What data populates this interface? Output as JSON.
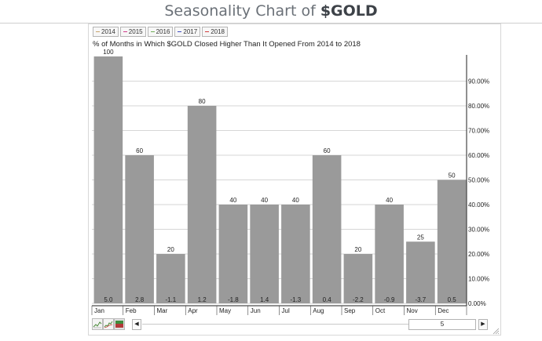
{
  "page": {
    "title_prefix": "Seasonality Chart of ",
    "title_symbol": "$GOLD"
  },
  "legend": [
    {
      "label": "2014",
      "color": "#c8a56b"
    },
    {
      "label": "2015",
      "color": "#d03a8a"
    },
    {
      "label": "2016",
      "color": "#6fae56"
    },
    {
      "label": "2017",
      "color": "#3a4ac0"
    },
    {
      "label": "2018",
      "color": "#d03a3a"
    }
  ],
  "colors": {
    "bar": "#9a9a9a",
    "grid": "#c8c8c8",
    "frame": "#d7d7d7"
  },
  "chart_data": {
    "type": "bar",
    "title": "% of Months in Which $GOLD Closed Higher Than It Opened From 2014 to 2018",
    "categories": [
      "Jan",
      "Feb",
      "Mar",
      "Apr",
      "May",
      "Jun",
      "Jul",
      "Aug",
      "Sep",
      "Oct",
      "Nov",
      "Dec"
    ],
    "values": [
      100,
      60,
      20,
      80,
      40,
      40,
      40,
      60,
      20,
      40,
      25,
      50
    ],
    "avg_change": [
      "5.0",
      "2.8",
      "-1.1",
      "1.2",
      "-1.8",
      "1.4",
      "-1.3",
      "0.4",
      "-2.2",
      "-0.9",
      "-3.7",
      "0.5"
    ],
    "ylim": [
      0,
      100
    ],
    "y_ticks": [
      0,
      10,
      20,
      30,
      40,
      50,
      60,
      70,
      80,
      90
    ],
    "y_tick_labels": [
      "0.00%",
      "10.00%",
      "20.00%",
      "30.00%",
      "40.00%",
      "50.00%",
      "60.00%",
      "70.00%",
      "80.00%",
      "90.00%"
    ],
    "y_axis_side": "right",
    "grid": true
  },
  "controls": {
    "scroll_value": "5",
    "left_arrow": "◀",
    "right_arrow": "▶"
  }
}
